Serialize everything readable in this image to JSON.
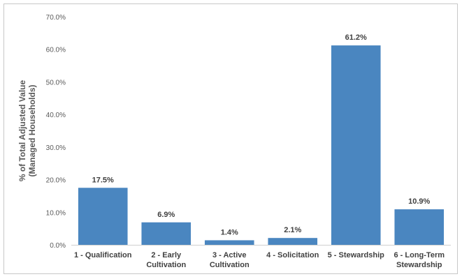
{
  "chart_data": {
    "type": "bar",
    "categories": [
      [
        "1 - Qualification"
      ],
      [
        "2 - Early",
        "Cultivation"
      ],
      [
        "3 - Active",
        "Cultivation"
      ],
      [
        "4 - Solicitation"
      ],
      [
        "5 - Stewardship"
      ],
      [
        "6 - Long-Term",
        "Stewardship"
      ]
    ],
    "values": [
      17.5,
      6.9,
      1.4,
      2.1,
      61.2,
      10.9
    ],
    "data_labels": [
      "17.5%",
      "6.9%",
      "1.4%",
      "2.1%",
      "61.2%",
      "10.9%"
    ],
    "ylabel": [
      "% of Total Adjusted Value",
      "(Managed Households)"
    ],
    "ylim": [
      0,
      70
    ],
    "yticks": [
      0,
      10,
      20,
      30,
      40,
      50,
      60,
      70
    ],
    "ytick_labels": [
      "0.0%",
      "10.0%",
      "20.0%",
      "30.0%",
      "40.0%",
      "50.0%",
      "60.0%",
      "70.0%"
    ],
    "grid": false,
    "legend": "none",
    "bar_color": "#4a86c0",
    "axis_color": "#d0d0d0"
  }
}
